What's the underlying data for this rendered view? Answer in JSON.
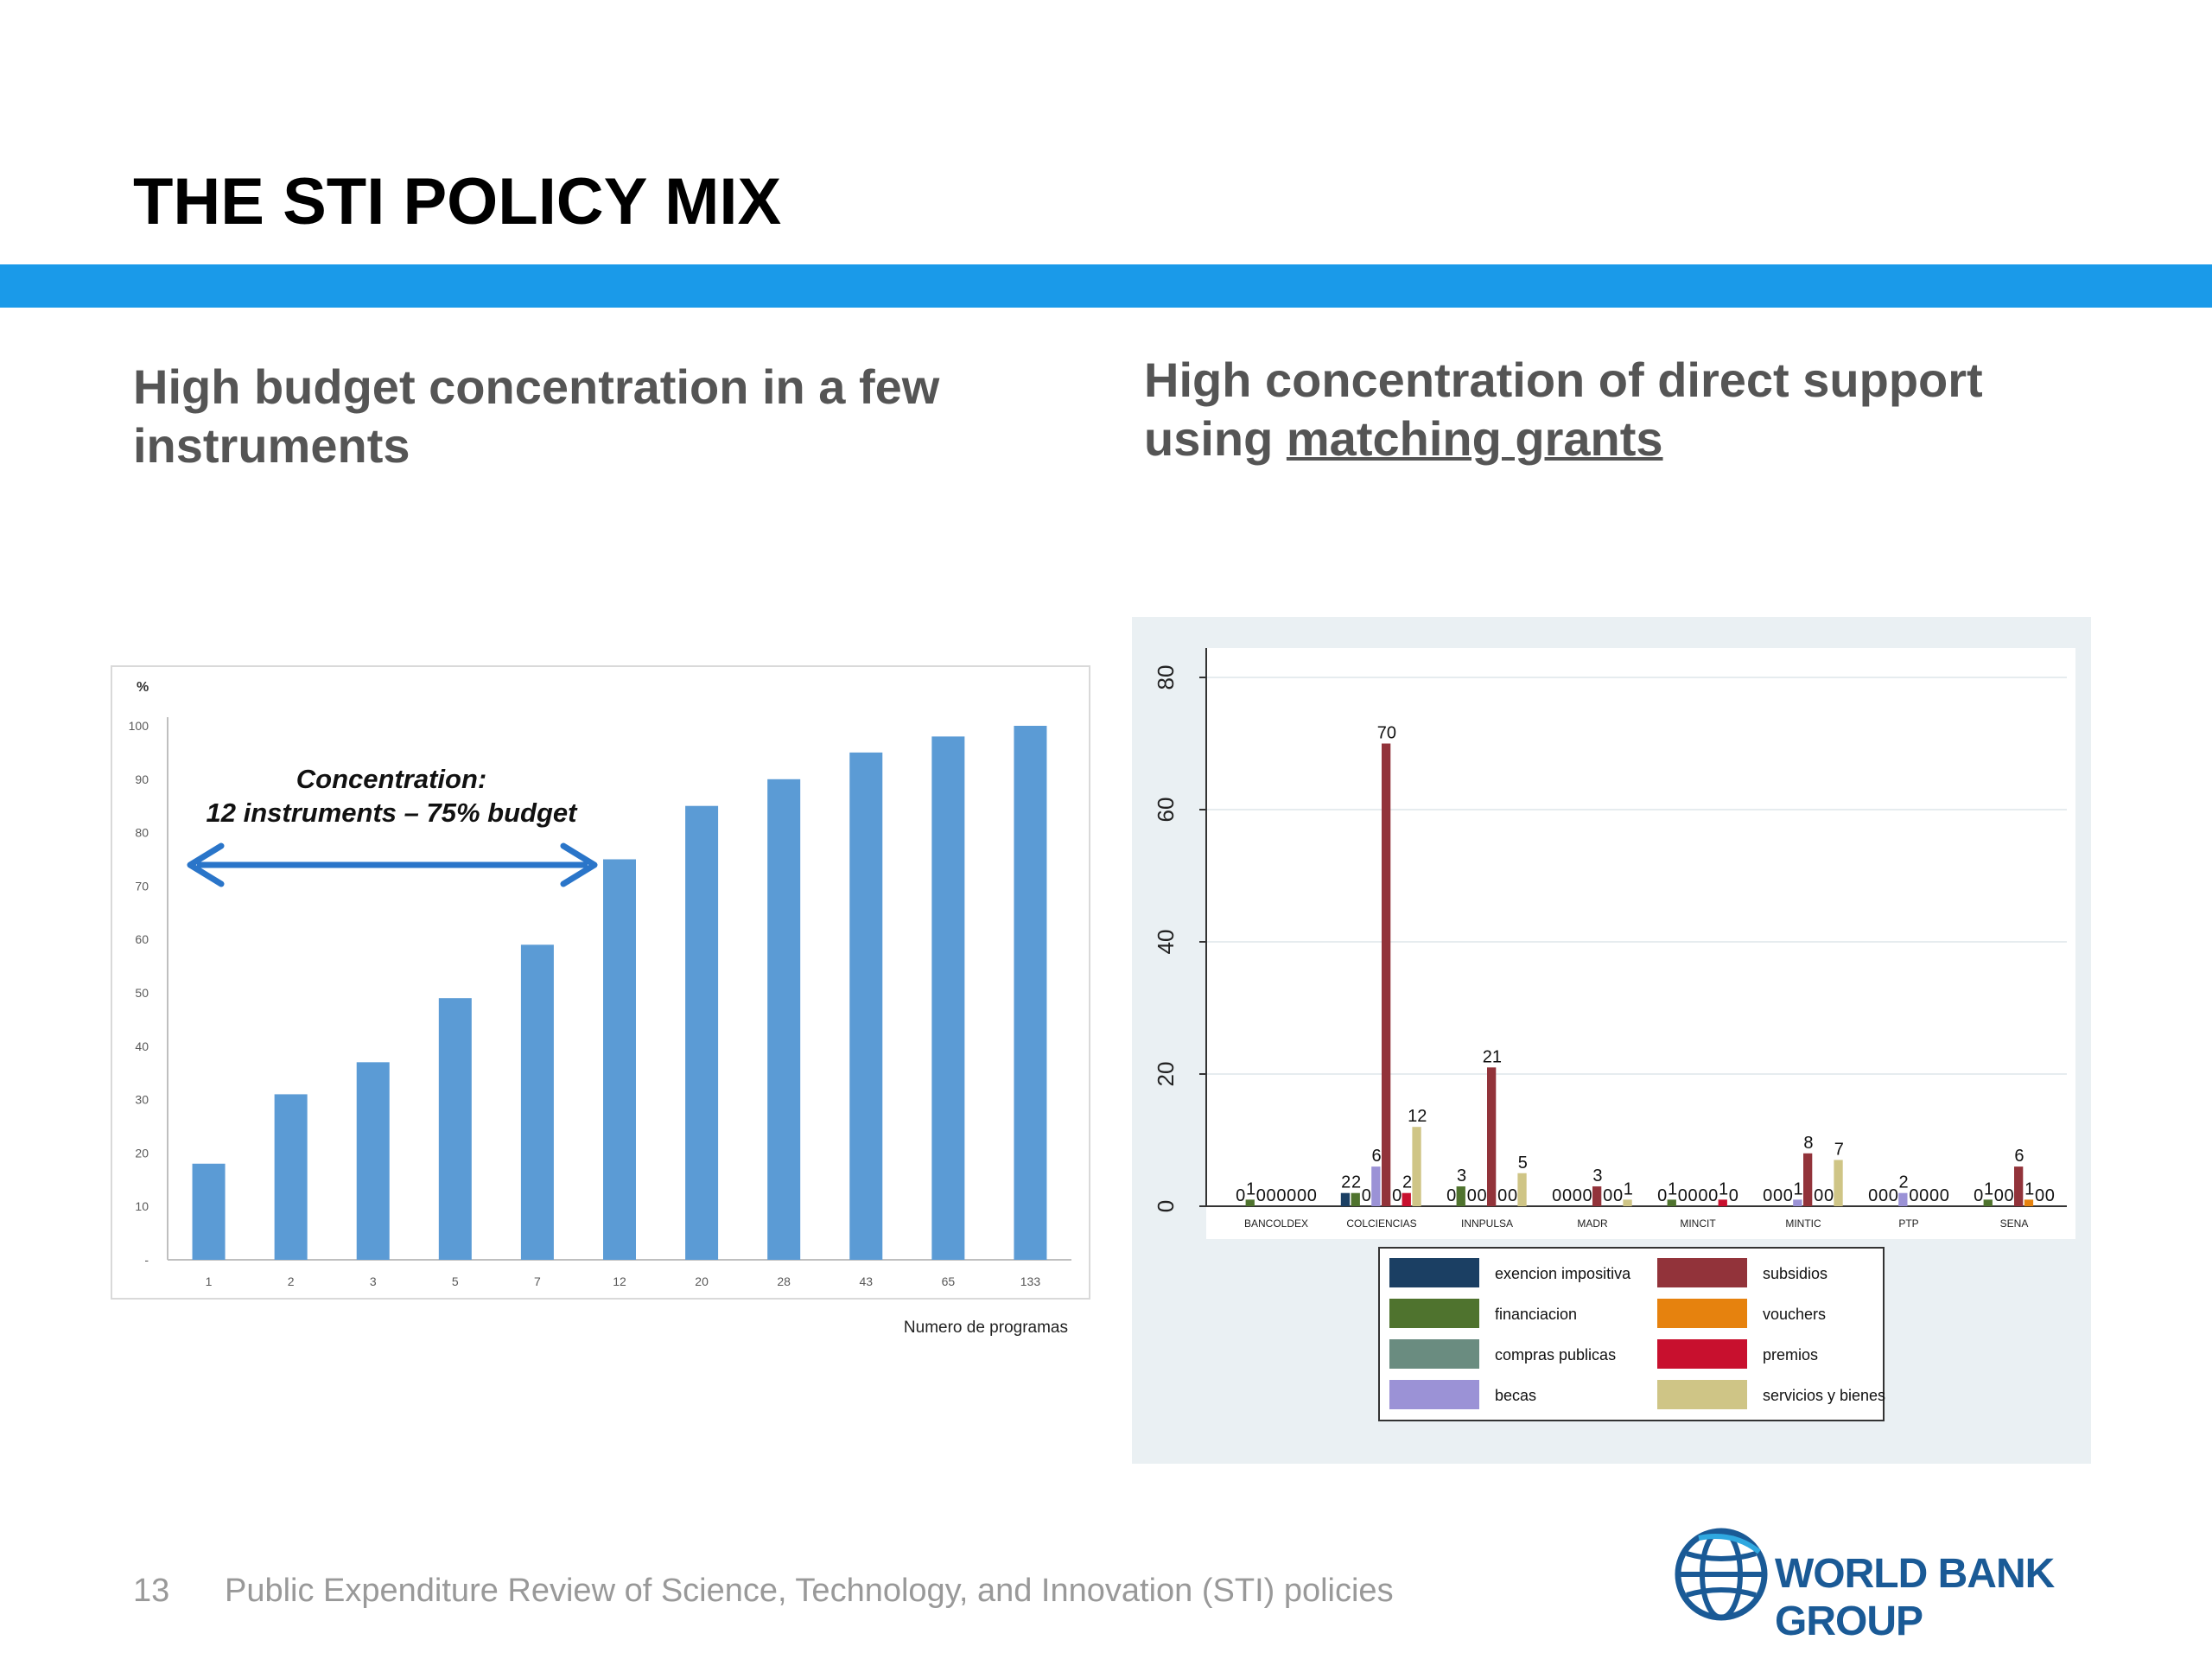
{
  "slide": {
    "title": "THE STI POLICY MIX",
    "subtitle_left": "High budget concentration in a few instruments",
    "subtitle_right_prefix": "High concentration of direct support using ",
    "subtitle_right_underlined": "matching grants",
    "page_number": "13",
    "footer": "Public Expenditure Review of Science, Technology, and Innovation (STI) policies",
    "logo_text": "WORLD BANK GROUP"
  },
  "colors": {
    "title_bar": "#1a9ae9",
    "bar_blue": "#5b9bd5",
    "arrow": "#2a75c9",
    "logo_blue": "#1a5a96"
  },
  "chart_data": [
    {
      "type": "bar",
      "categories": [
        "1",
        "2",
        "3",
        "5",
        "7",
        "12",
        "20",
        "28",
        "43",
        "65",
        "133"
      ],
      "values": [
        18,
        31,
        37,
        49,
        59,
        75,
        85,
        90,
        95,
        98,
        100
      ],
      "ylabel": "%",
      "xlabel": "Numero de programas",
      "ylim": [
        0,
        100
      ],
      "yticks": [
        "-",
        "10",
        "20",
        "30",
        "40",
        "50",
        "60",
        "70",
        "80",
        "90",
        "100"
      ],
      "grid": false,
      "annotation": {
        "line1": "Concentration:",
        "line2": "12 instruments – 75% budget"
      }
    },
    {
      "type": "bar",
      "categories": [
        "BANCOLDEX",
        "COLCIENCIAS",
        "INNPULSA",
        "MADR",
        "MINCIT",
        "MINTIC",
        "PTP",
        "SENA"
      ],
      "ylim": [
        0,
        80
      ],
      "yticks": [
        "0",
        "20",
        "40",
        "60",
        "80"
      ],
      "grid": true,
      "legend_position": "bottom",
      "series": [
        {
          "name": "exencion impositiva",
          "color": "#1b3f63",
          "values": [
            0,
            2,
            0,
            0,
            0,
            0,
            0,
            0
          ]
        },
        {
          "name": "financiacion",
          "color": "#4f732e",
          "values": [
            1,
            2,
            3,
            0,
            1,
            0,
            0,
            1
          ]
        },
        {
          "name": "compras publicas",
          "color": "#6a8c80",
          "values": [
            0,
            0,
            0,
            0,
            0,
            0,
            0,
            0
          ]
        },
        {
          "name": "becas",
          "color": "#9b92d6",
          "values": [
            0,
            6,
            0,
            0,
            0,
            1,
            2,
            0
          ]
        },
        {
          "name": "subsidios",
          "color": "#92333a",
          "values": [
            0,
            70,
            21,
            3,
            0,
            8,
            0,
            6
          ]
        },
        {
          "name": "vouchers",
          "color": "#e6820e",
          "values": [
            0,
            0,
            0,
            0,
            0,
            0,
            0,
            1
          ]
        },
        {
          "name": "premios",
          "color": "#c8102e",
          "values": [
            0,
            2,
            0,
            0,
            1,
            0,
            0,
            0
          ]
        },
        {
          "name": "servicios y bienes",
          "color": "#cfc586",
          "values": [
            0,
            12,
            5,
            1,
            0,
            7,
            0,
            0
          ]
        }
      ]
    }
  ]
}
